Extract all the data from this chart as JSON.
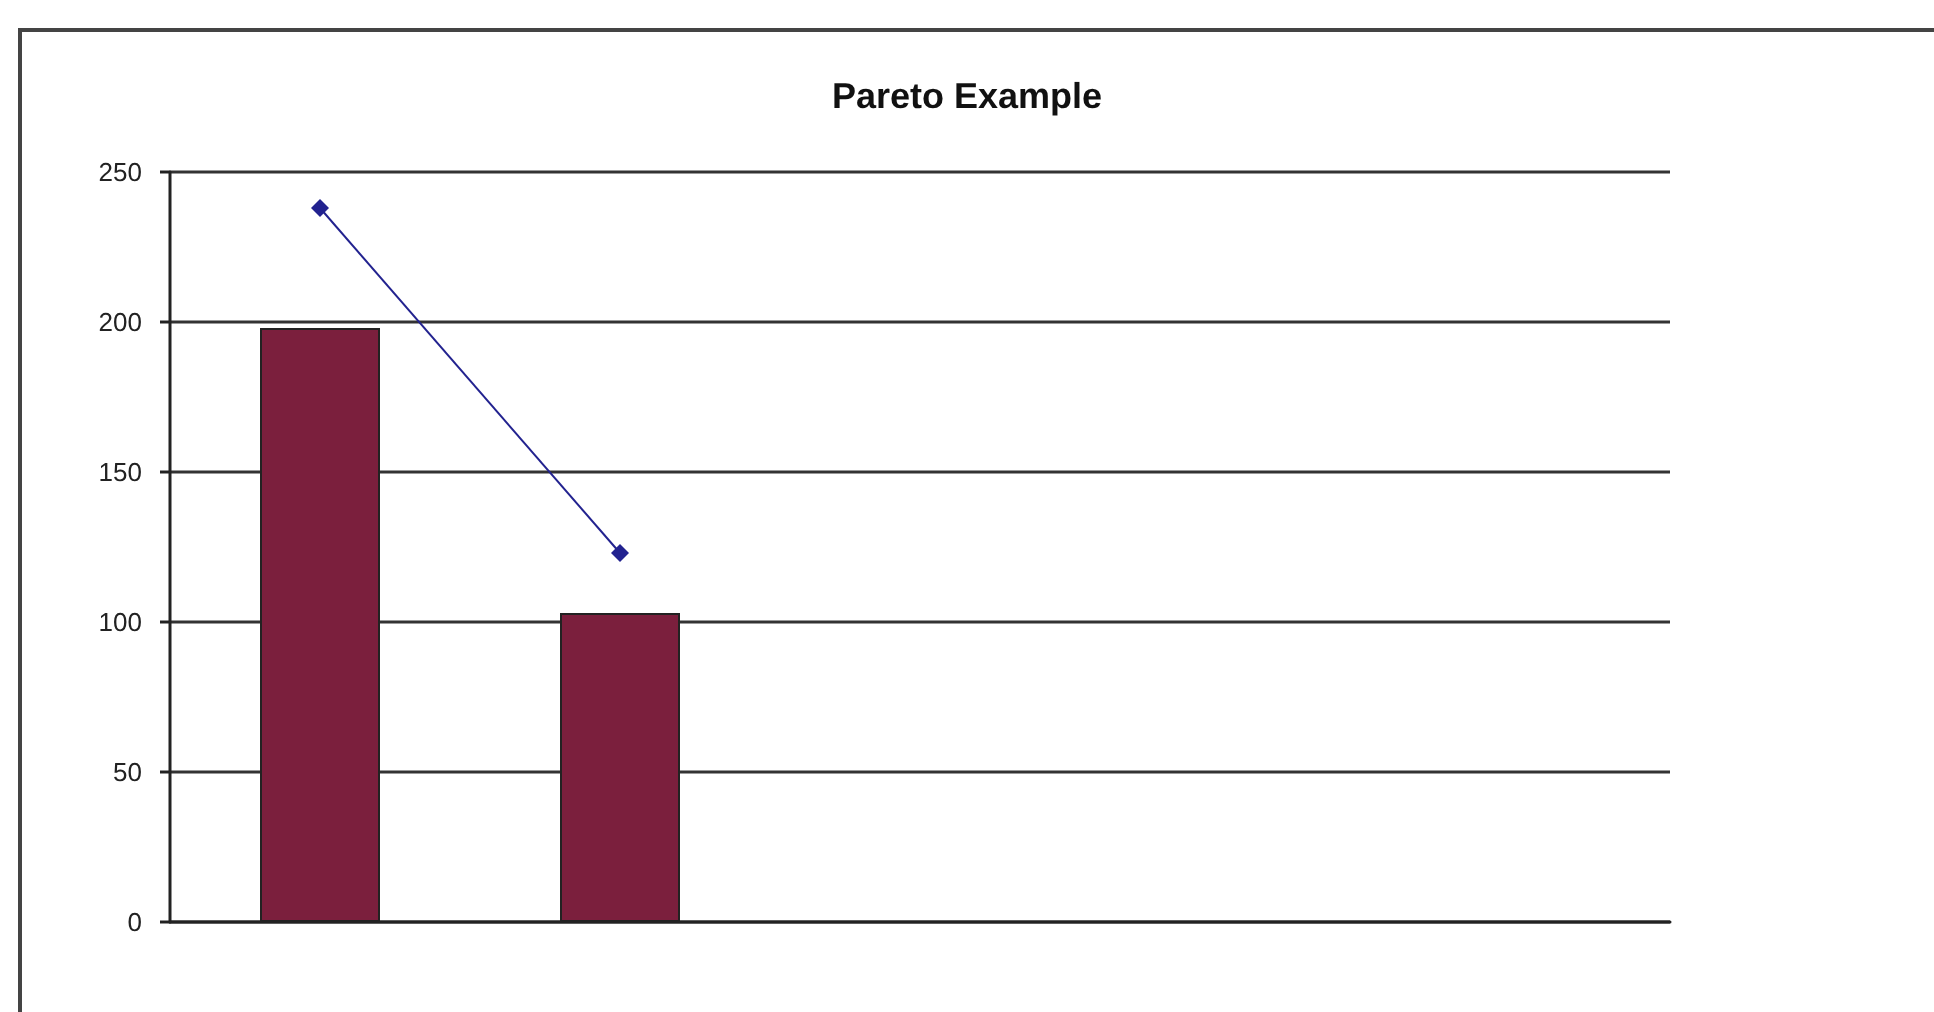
{
  "chart_data": {
    "type": "bar",
    "title": "Pareto Example",
    "categories": [
      null,
      null,
      null,
      null,
      null
    ],
    "series": [
      {
        "color": "#7b1f3d",
        "values": [
          198,
          103,
          null,
          null,
          null
        ]
      },
      {
        "type": "line",
        "color": "#22228f",
        "values": [
          238,
          123,
          null,
          null,
          null
        ]
      }
    ],
    "marker": "diamond",
    "ylim": [
      0,
      250
    ],
    "yticks": [
      0,
      50,
      100,
      150,
      200,
      250
    ],
    "grid": "y",
    "tick_labels": "y"
  }
}
